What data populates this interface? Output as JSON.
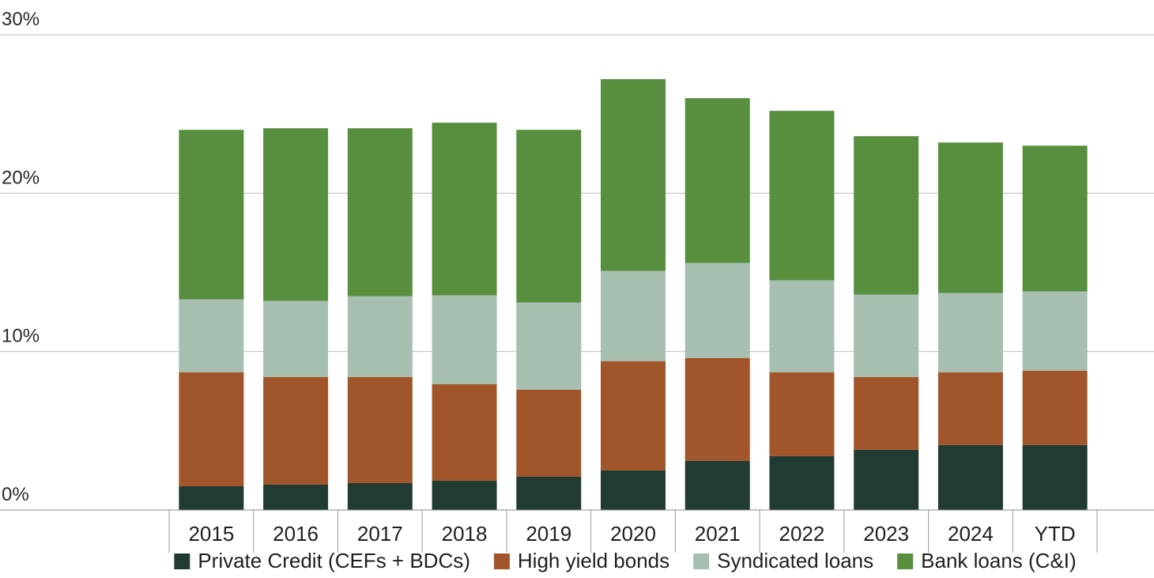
{
  "chart_data": {
    "type": "bar",
    "stacked": true,
    "title": "",
    "xlabel": "",
    "ylabel": "",
    "ylim": [
      0,
      30
    ],
    "y_ticks": [
      {
        "value": 0,
        "label": "0%"
      },
      {
        "value": 10,
        "label": "10%"
      },
      {
        "value": 20,
        "label": "20%"
      },
      {
        "value": 30,
        "label": "30%"
      }
    ],
    "categories": [
      "2015",
      "2016",
      "2017",
      "2018",
      "2019",
      "2020",
      "2021",
      "2022",
      "2023",
      "2024",
      "YTD"
    ],
    "series": [
      {
        "name": "Private Credit (CEFs + BDCs)",
        "color": "#213b33",
        "values": [
          1.5,
          1.6,
          1.7,
          1.85,
          2.1,
          2.5,
          3.1,
          3.4,
          3.8,
          4.1,
          4.1
        ]
      },
      {
        "name": "High yield bonds",
        "color": "#a0552a",
        "values": [
          7.2,
          6.8,
          6.7,
          6.1,
          5.5,
          6.9,
          6.5,
          5.3,
          4.6,
          4.6,
          4.7
        ]
      },
      {
        "name": "Syndicated loans",
        "color": "#a6bfb1",
        "values": [
          4.6,
          4.8,
          5.1,
          5.6,
          5.5,
          5.7,
          6.0,
          5.8,
          5.2,
          5.0,
          5.0
        ]
      },
      {
        "name": "Bank loans (C&I)",
        "color": "#588f3e",
        "values": [
          10.7,
          10.9,
          10.6,
          10.9,
          10.9,
          12.1,
          10.4,
          10.7,
          10.0,
          9.5,
          9.2
        ]
      }
    ],
    "legend_position": "bottom",
    "grid": true
  }
}
